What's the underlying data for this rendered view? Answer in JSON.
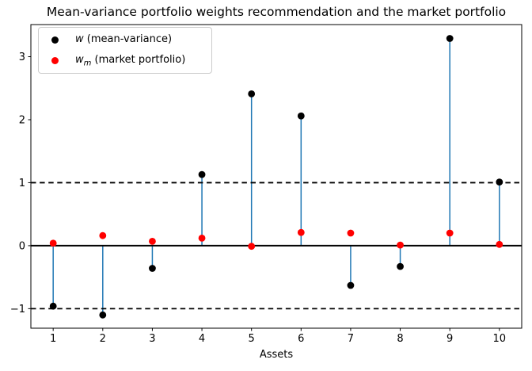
{
  "chart_data": {
    "type": "stem",
    "title": "Mean-variance portfolio weights recommendation and the market portfolio",
    "xlabel": "Assets",
    "ylabel": "",
    "categories": [
      1,
      2,
      3,
      4,
      5,
      6,
      7,
      8,
      9,
      10
    ],
    "series": [
      {
        "name": "w (mean-variance)",
        "style": "stem",
        "marker_color": "#000000",
        "line_color": "#1f77b4",
        "values": [
          -0.96,
          -1.1,
          -0.36,
          1.13,
          2.41,
          2.06,
          -0.63,
          -0.33,
          3.29,
          1.01
        ]
      },
      {
        "name": "wm (market portfolio)",
        "style": "scatter",
        "marker_color": "#ff0000",
        "values": [
          0.04,
          0.16,
          0.07,
          0.12,
          -0.01,
          0.21,
          0.2,
          0.01,
          0.2,
          0.02
        ]
      }
    ],
    "hlines": [
      {
        "y": 1,
        "line_style": "dashed",
        "color": "#000000"
      },
      {
        "y": 0,
        "line_style": "solid",
        "color": "#000000"
      },
      {
        "y": -1,
        "line_style": "dashed",
        "color": "#000000"
      }
    ],
    "xticks": [
      1,
      2,
      3,
      4,
      5,
      6,
      7,
      8,
      9,
      10
    ],
    "yticks": [
      -1,
      0,
      1,
      2,
      3
    ],
    "xlim": [
      0.55,
      10.45
    ],
    "ylim": [
      -1.31,
      3.51
    ],
    "grid": false,
    "legend_position": "upper-left"
  },
  "legend": {
    "items": [
      {
        "marker_color": "#000000",
        "symbol": "w",
        "subscript": "",
        "rest": " (mean-variance)"
      },
      {
        "marker_color": "#ff0000",
        "symbol": "w",
        "subscript": "m",
        "rest": " (market portfolio)"
      }
    ]
  },
  "colors": {
    "background": "#ffffff",
    "axes": "#000000",
    "stem_line": "#1f77b4",
    "w_marker": "#000000",
    "wm_marker": "#ff0000"
  }
}
